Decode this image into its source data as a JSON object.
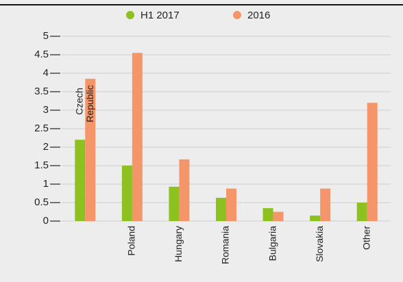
{
  "chart_data": {
    "type": "bar",
    "categories": [
      "Czech Republic",
      "Poland",
      "Hungary",
      "Romania",
      "Bulgaria",
      "Slovakia",
      "Other"
    ],
    "series": [
      {
        "name": "H1 2017",
        "color": "#8cc11f",
        "values": [
          2.2,
          1.5,
          0.93,
          0.63,
          0.35,
          0.15,
          0.5
        ]
      },
      {
        "name": "2016",
        "color": "#f4956a",
        "values": [
          3.85,
          4.55,
          1.67,
          0.88,
          0.25,
          0.88,
          3.2
        ]
      }
    ],
    "ylim": [
      0,
      5
    ],
    "yticks": [
      0,
      0.5,
      1,
      1.5,
      2,
      2.5,
      3,
      3.5,
      4,
      4.5,
      5
    ],
    "grid": true
  }
}
